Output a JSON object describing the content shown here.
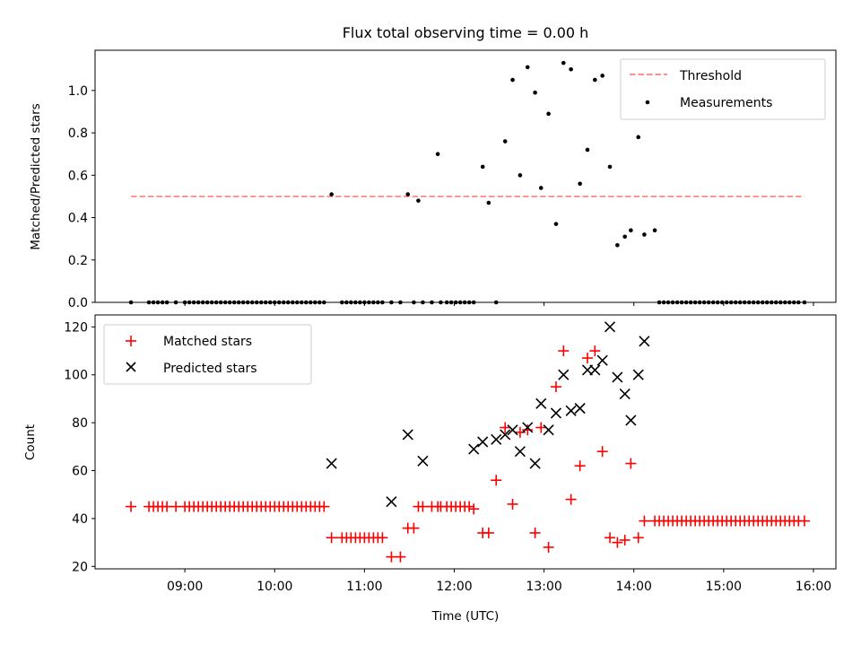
{
  "title": "Flux total observing time = 0.00 h",
  "xlabel": "Time (UTC)",
  "chart_data": [
    {
      "type": "scatter",
      "ylabel": "Matched/Predicted stars",
      "xlim": [
        "08:00",
        "16:15"
      ],
      "ylim": [
        0,
        1.19
      ],
      "yticks": [
        "0.0",
        "0.2",
        "0.4",
        "0.6",
        "0.8",
        "1.0"
      ],
      "threshold": {
        "name": "Threshold",
        "value": 0.5,
        "color": "#ff7f7f",
        "x_range": [
          "08:24",
          "15:54"
        ]
      },
      "legend_position": "upper right",
      "series": [
        {
          "name": "Measurements",
          "color": "#000000",
          "x": [
            "08:24",
            "08:36",
            "08:39",
            "08:42",
            "08:45",
            "08:48",
            "08:54",
            "09:00",
            "09:03",
            "09:06",
            "09:09",
            "09:12",
            "09:15",
            "09:18",
            "09:21",
            "09:24",
            "09:27",
            "09:30",
            "09:33",
            "09:36",
            "09:39",
            "09:42",
            "09:45",
            "09:48",
            "09:51",
            "09:54",
            "09:57",
            "10:00",
            "10:03",
            "10:06",
            "10:09",
            "10:12",
            "10:15",
            "10:18",
            "10:21",
            "10:24",
            "10:27",
            "10:30",
            "10:33",
            "10:38",
            "10:45",
            "10:48",
            "10:51",
            "10:54",
            "10:57",
            "11:00",
            "11:03",
            "11:06",
            "11:09",
            "11:12",
            "11:18",
            "11:24",
            "11:29",
            "11:33",
            "11:36",
            "11:39",
            "11:45",
            "11:49",
            "11:51",
            "11:55",
            "11:58",
            "12:01",
            "12:04",
            "12:07",
            "12:10",
            "12:13",
            "12:19",
            "12:23",
            "12:28",
            "12:34",
            "12:39",
            "12:44",
            "12:49",
            "12:54",
            "12:58",
            "13:03",
            "13:08",
            "13:13",
            "13:18",
            "13:24",
            "13:29",
            "13:34",
            "13:39",
            "13:44",
            "13:49",
            "13:54",
            "13:58",
            "14:03",
            "14:07",
            "14:14",
            "14:17",
            "14:20",
            "14:23",
            "14:26",
            "14:29",
            "14:32",
            "14:35",
            "14:38",
            "14:41",
            "14:44",
            "14:47",
            "14:50",
            "14:53",
            "14:56",
            "14:59",
            "15:02",
            "15:05",
            "15:08",
            "15:11",
            "15:14",
            "15:17",
            "15:20",
            "15:23",
            "15:26",
            "15:29",
            "15:32",
            "15:35",
            "15:38",
            "15:41",
            "15:44",
            "15:47",
            "15:50",
            "15:54"
          ],
          "y": [
            0,
            0,
            0,
            0,
            0,
            0,
            0,
            0,
            0,
            0,
            0,
            0,
            0,
            0,
            0,
            0,
            0,
            0,
            0,
            0,
            0,
            0,
            0,
            0,
            0,
            0,
            0,
            0,
            0,
            0,
            0,
            0,
            0,
            0,
            0,
            0,
            0,
            0,
            0,
            0.51,
            0,
            0,
            0,
            0,
            0,
            0,
            0,
            0,
            0,
            0,
            0,
            0,
            0.51,
            0,
            0.48,
            0,
            0,
            0.7,
            0,
            0,
            0,
            0,
            0,
            0,
            0,
            0,
            0.64,
            0.47,
            0,
            0.76,
            1.05,
            0.6,
            1.11,
            0.99,
            0.54,
            0.89,
            0.37,
            1.13,
            1.1,
            0.56,
            0.72,
            1.05,
            1.07,
            0.64,
            0.27,
            0.31,
            0.34,
            0.78,
            0.32,
            0.34,
            0,
            0,
            0,
            0,
            0,
            0,
            0,
            0,
            0,
            0,
            0,
            0,
            0,
            0,
            0,
            0,
            0,
            0,
            0,
            0,
            0,
            0,
            0,
            0,
            0,
            0,
            0,
            0,
            0,
            0,
            0,
            0,
            0
          ]
        }
      ]
    },
    {
      "type": "scatter",
      "ylabel": "Count",
      "xlim": [
        "08:00",
        "16:15"
      ],
      "ylim": [
        19,
        125
      ],
      "yticks": [
        "20",
        "40",
        "60",
        "80",
        "100",
        "120"
      ],
      "xticks": [
        "09:00",
        "10:00",
        "11:00",
        "12:00",
        "13:00",
        "14:00",
        "15:00",
        "16:00"
      ],
      "legend_position": "upper left",
      "series": [
        {
          "name": "Matched stars",
          "color": "#ff0000",
          "marker": "+",
          "x": [
            "08:24",
            "08:36",
            "08:39",
            "08:42",
            "08:45",
            "08:48",
            "08:54",
            "09:00",
            "09:03",
            "09:06",
            "09:09",
            "09:12",
            "09:15",
            "09:18",
            "09:21",
            "09:24",
            "09:27",
            "09:30",
            "09:33",
            "09:36",
            "09:39",
            "09:42",
            "09:45",
            "09:48",
            "09:51",
            "09:54",
            "09:57",
            "10:00",
            "10:03",
            "10:06",
            "10:09",
            "10:12",
            "10:15",
            "10:18",
            "10:21",
            "10:24",
            "10:27",
            "10:30",
            "10:33",
            "10:38",
            "10:45",
            "10:48",
            "10:51",
            "10:54",
            "10:57",
            "11:00",
            "11:03",
            "11:06",
            "11:09",
            "11:12",
            "11:18",
            "11:24",
            "11:29",
            "11:33",
            "11:36",
            "11:39",
            "11:45",
            "11:49",
            "11:51",
            "11:55",
            "11:58",
            "12:01",
            "12:04",
            "12:07",
            "12:10",
            "12:13",
            "12:19",
            "12:23",
            "12:28",
            "12:34",
            "12:39",
            "12:44",
            "12:49",
            "12:54",
            "12:58",
            "13:03",
            "13:08",
            "13:13",
            "13:18",
            "13:24",
            "13:29",
            "13:34",
            "13:39",
            "13:44",
            "13:49",
            "13:54",
            "13:58",
            "14:03",
            "14:07",
            "14:14",
            "14:17",
            "14:20",
            "14:23",
            "14:26",
            "14:29",
            "14:32",
            "14:35",
            "14:38",
            "14:41",
            "14:44",
            "14:47",
            "14:50",
            "14:53",
            "14:56",
            "14:59",
            "15:02",
            "15:05",
            "15:08",
            "15:11",
            "15:14",
            "15:17",
            "15:20",
            "15:23",
            "15:26",
            "15:29",
            "15:32",
            "15:35",
            "15:38",
            "15:41",
            "15:44",
            "15:47",
            "15:50",
            "15:54"
          ],
          "y": [
            45,
            45,
            45,
            45,
            45,
            45,
            45,
            45,
            45,
            45,
            45,
            45,
            45,
            45,
            45,
            45,
            45,
            45,
            45,
            45,
            45,
            45,
            45,
            45,
            45,
            45,
            45,
            45,
            45,
            45,
            45,
            45,
            45,
            45,
            45,
            45,
            45,
            45,
            45,
            32,
            32,
            32,
            32,
            32,
            32,
            32,
            32,
            32,
            32,
            32,
            24,
            24,
            36,
            36,
            45,
            45,
            45,
            45,
            45,
            45,
            45,
            45,
            45,
            45,
            45,
            44,
            34,
            34,
            56,
            78,
            46,
            76,
            77,
            34,
            78,
            28,
            95,
            110,
            48,
            62,
            107,
            110,
            68,
            32,
            30,
            31,
            63,
            32,
            39,
            39,
            39,
            39,
            39,
            39,
            39,
            39,
            39,
            39,
            39,
            39,
            39,
            39,
            39,
            39,
            39,
            39,
            39,
            39,
            39,
            39,
            39,
            39,
            39,
            39,
            39,
            39,
            39,
            39,
            39,
            39,
            39,
            39,
            39
          ]
        },
        {
          "name": "Predicted stars",
          "color": "#000000",
          "marker": "x",
          "x": [
            "10:38",
            "11:18",
            "11:29",
            "11:39",
            "12:13",
            "12:19",
            "12:28",
            "12:34",
            "12:39",
            "12:44",
            "12:49",
            "12:54",
            "12:58",
            "13:03",
            "13:08",
            "13:13",
            "13:18",
            "13:24",
            "13:29",
            "13:34",
            "13:39",
            "13:44",
            "13:49",
            "13:54",
            "13:58",
            "14:03",
            "14:07"
          ],
          "y": [
            63,
            47,
            75,
            64,
            69,
            72,
            73,
            75,
            77,
            68,
            78,
            63,
            88,
            77,
            84,
            100,
            85,
            86,
            102,
            102,
            106,
            120,
            99,
            92,
            81,
            100,
            114
          ]
        }
      ]
    }
  ]
}
